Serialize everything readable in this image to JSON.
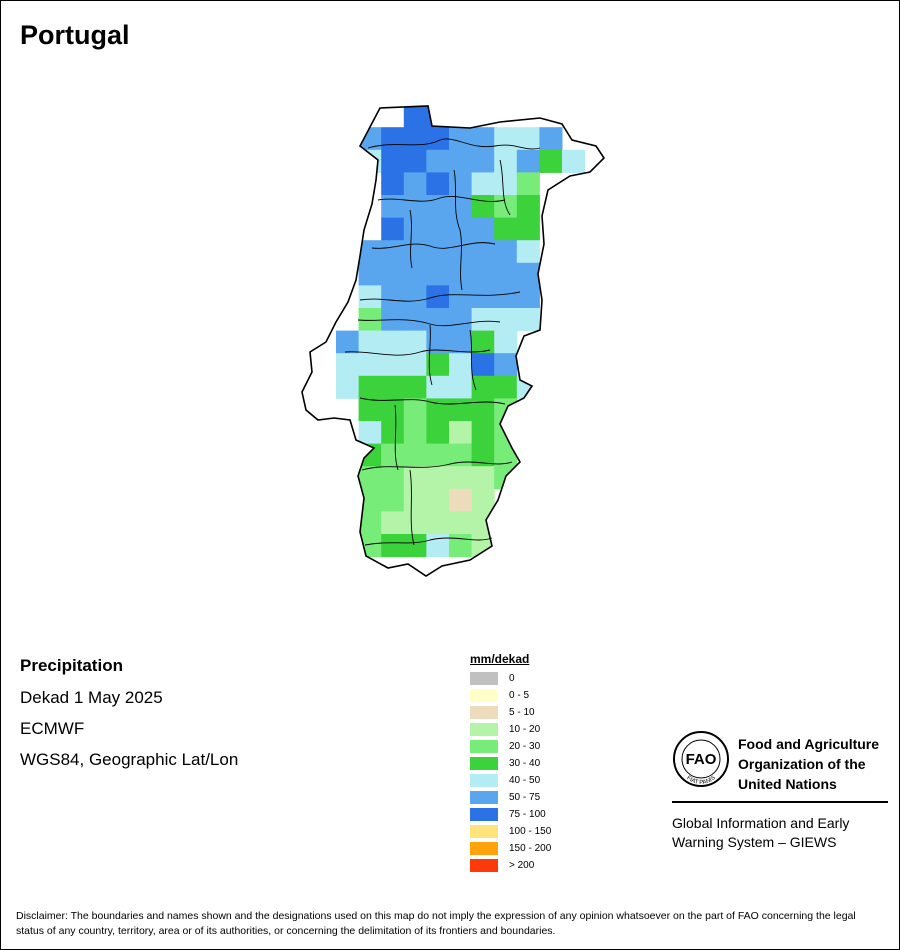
{
  "map": {
    "title": "Portugal",
    "grid": {
      "rows": [
        [
          null,
          null,
          null,
          null,
          null,
          null,
          null,
          null,
          null,
          null,
          null
        ],
        [
          null,
          null,
          null,
          "75-100",
          "75-100",
          null,
          null,
          null,
          null,
          null,
          null
        ],
        [
          null,
          "50-75",
          "75-100",
          "75-100",
          "75-100",
          "50-75",
          "50-75",
          "40-50",
          "40-50",
          "50-75",
          null
        ],
        [
          null,
          "40-50",
          "75-100",
          "75-100",
          "50-75",
          "50-75",
          "50-75",
          "40-50",
          "50-75",
          "30-40",
          "40-50"
        ],
        [
          null,
          null,
          "75-100",
          "50-75",
          "75-100",
          "50-75",
          "40-50",
          "40-50",
          "20-30",
          null,
          null
        ],
        [
          null,
          null,
          "50-75",
          "50-75",
          "50-75",
          "50-75",
          "30-40",
          "20-30",
          "30-40",
          null,
          null
        ],
        [
          null,
          null,
          "75-100",
          "50-75",
          "50-75",
          "50-75",
          "50-75",
          "30-40",
          "30-40",
          null,
          null
        ],
        [
          null,
          "50-75",
          "50-75",
          "50-75",
          "50-75",
          "50-75",
          "50-75",
          "50-75",
          "40-50",
          null,
          null
        ],
        [
          null,
          "50-75",
          "50-75",
          "50-75",
          "50-75",
          "50-75",
          "50-75",
          "50-75",
          "50-75",
          null,
          null
        ],
        [
          null,
          "40-50",
          "50-75",
          "50-75",
          "75-100",
          "50-75",
          "50-75",
          "50-75",
          "50-75",
          null,
          null
        ],
        [
          null,
          "20-30",
          "50-75",
          "50-75",
          "50-75",
          "50-75",
          "40-50",
          "40-50",
          "40-50",
          null,
          null
        ],
        [
          "50-75",
          "40-50",
          "40-50",
          "40-50",
          "50-75",
          "50-75",
          "30-40",
          "40-50",
          null,
          null,
          null
        ],
        [
          "40-50",
          "40-50",
          "40-50",
          "40-50",
          "30-40",
          "40-50",
          "75-100",
          "50-75",
          null,
          null,
          null
        ],
        [
          "40-50",
          "30-40",
          "30-40",
          "30-40",
          "40-50",
          "40-50",
          "30-40",
          "30-40",
          "40-50",
          null,
          null
        ],
        [
          null,
          "30-40",
          "30-40",
          "20-30",
          "30-40",
          "30-40",
          "30-40",
          "20-30",
          null,
          null,
          null
        ],
        [
          null,
          "40-50",
          "30-40",
          "20-30",
          "30-40",
          "10-20",
          "30-40",
          "20-30",
          null,
          null,
          null
        ],
        [
          null,
          "30-40",
          "20-30",
          "20-30",
          "20-30",
          "20-30",
          "30-40",
          "20-30",
          null,
          null,
          null
        ],
        [
          null,
          "20-30",
          "20-30",
          "10-20",
          "10-20",
          "10-20",
          "10-20",
          "20-30",
          null,
          null,
          null
        ],
        [
          null,
          "20-30",
          "20-30",
          "10-20",
          "10-20",
          "5-10",
          "10-20",
          null,
          null,
          null,
          null
        ],
        [
          null,
          "20-30",
          "10-20",
          "10-20",
          "10-20",
          "10-20",
          "10-20",
          null,
          null,
          null,
          null
        ],
        [
          null,
          "20-30",
          "30-40",
          "30-40",
          "40-50",
          "20-30",
          "10-20",
          null,
          null,
          null,
          null
        ]
      ]
    }
  },
  "info": {
    "layer": "Precipitation",
    "period": "Dekad 1 May 2025",
    "model": "ECMWF",
    "projection": "WGS84, Geographic Lat/Lon"
  },
  "legend": {
    "title": "mm/dekad",
    "items": [
      {
        "label": "0",
        "color": "#c0c0c0"
      },
      {
        "label": "0 - 5",
        "color": "#ffffc8"
      },
      {
        "label": "5 - 10",
        "color": "#ecdcbc"
      },
      {
        "label": "10 - 20",
        "color": "#b4f4a8"
      },
      {
        "label": "20 - 30",
        "color": "#78ec78"
      },
      {
        "label": "30 - 40",
        "color": "#3cd23c"
      },
      {
        "label": "40 - 50",
        "color": "#b4ecf4"
      },
      {
        "label": "50 - 75",
        "color": "#5aa6ee"
      },
      {
        "label": "75 - 100",
        "color": "#2a72e6"
      },
      {
        "label": "100 - 150",
        "color": "#ffe47c"
      },
      {
        "label": "150 - 200",
        "color": "#ffa20c"
      },
      {
        "label": "> 200",
        "color": "#ff3a0a"
      }
    ]
  },
  "org": {
    "name_line1": "Food and Agriculture",
    "name_line2": "Organization of the",
    "name_line3": "United Nations",
    "system_line1": "Global Information and Early",
    "system_line2": "Warning System – GIEWS",
    "logo_text": "FAO",
    "logo_motto": "FIAT PANIS"
  },
  "disclaimer": "Disclaimer: The boundaries and names shown and the designations used on this map do not imply the expression of any opinion whatsoever on the part of FAO concerning the legal status of any country, territory, area or of its authorities, or concerning the delimitation of its frontiers and boundaries."
}
